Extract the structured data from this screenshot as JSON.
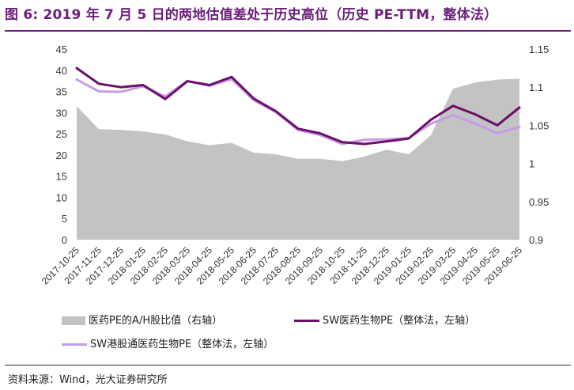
{
  "header": {
    "title": "图 6: 2019 年 7 月 5 日的两地估值差处于历史高位（历史 PE-TTM，整体法）"
  },
  "footer": {
    "source": "资料来源：Wind，光大证券研究所"
  },
  "colors": {
    "area": "#c3c3c3",
    "sw_pharma": "#6b0f6b",
    "sw_hk": "#c79be6",
    "title": "#6b1f7a"
  },
  "chart_data": {
    "type": "line",
    "x_labels": [
      "2017-10-25",
      "2017-11-25",
      "2017-12-25",
      "2018-01-25",
      "2018-02-25",
      "2018-03-25",
      "2018-04-25",
      "2018-05-25",
      "2018-06-25",
      "2018-07-25",
      "2018-08-25",
      "2018-09-25",
      "2018-10-25",
      "2018-11-25",
      "2018-12-25",
      "2019-01-25",
      "2019-02-25",
      "2019-03-25",
      "2019-04-25",
      "2019-05-25",
      "2019-06-25"
    ],
    "y_left": {
      "min": 0,
      "max": 45,
      "ticks": [
        0,
        5,
        10,
        15,
        20,
        25,
        30,
        35,
        40,
        45
      ]
    },
    "y_right": {
      "min": 0.9,
      "max": 1.15,
      "ticks": [
        "0.9",
        "0.95",
        "1",
        "1.05",
        "1.1",
        "1.15"
      ]
    },
    "series": [
      {
        "name": "医药PE的A/H股比值（右轴）",
        "type": "area",
        "axis": "right",
        "values": [
          1.075,
          1.045,
          1.044,
          1.042,
          1.038,
          1.029,
          1.024,
          1.027,
          1.014,
          1.012,
          1.006,
          1.006,
          1.003,
          1.009,
          1.018,
          1.012,
          1.037,
          1.098,
          1.106,
          1.11,
          1.111
        ]
      },
      {
        "name": "SW医药生物PE（整体法，左轴）",
        "type": "line",
        "axis": "left",
        "values": [
          40.5,
          36.8,
          36.0,
          36.5,
          33.2,
          37.4,
          36.5,
          38.4,
          33.3,
          30.3,
          26.2,
          25.1,
          23.0,
          22.6,
          23.2,
          23.9,
          28.3,
          31.6,
          29.6,
          27.0,
          31.2
        ]
      },
      {
        "name": "SW港股通医药生物PE（整体法，左轴）",
        "type": "line",
        "axis": "left",
        "values": [
          37.8,
          35.0,
          34.9,
          36.2,
          33.8,
          37.5,
          36.3,
          37.9,
          32.9,
          30.1,
          25.9,
          24.7,
          22.6,
          23.6,
          23.7,
          24.0,
          27.4,
          29.4,
          27.4,
          25.1,
          26.6
        ]
      }
    ],
    "legend_position": "bottom",
    "grid": false
  }
}
